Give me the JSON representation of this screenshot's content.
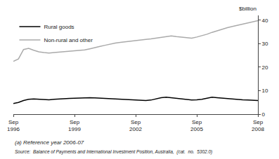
{
  "chart_data": {
    "type": "line",
    "ylabel": "$billion",
    "annotations": [
      "(a) Reference year 2006-07",
      "Source:  Balance of Payments and International Investment Position, Australia,  (cat.  no.  5302.0)"
    ],
    "categories": [
      "Sep\n1996",
      null,
      null,
      null,
      null,
      null,
      null,
      null,
      null,
      null,
      null,
      null,
      "Sep\n1999",
      null,
      null,
      null,
      null,
      null,
      null,
      null,
      null,
      null,
      null,
      null,
      "Sep\n2002",
      null,
      null,
      null,
      null,
      null,
      null,
      null,
      null,
      null,
      null,
      null,
      "Sep\n2005",
      null,
      null,
      null,
      null,
      null,
      null,
      null,
      null,
      null,
      null,
      null,
      "Sep\n2008"
    ],
    "series": [
      {
        "name": "Rural goods",
        "color": "#000000",
        "values": [
          4.5,
          5.0,
          5.8,
          6.3,
          6.5,
          6.3,
          6.2,
          6.1,
          6.3,
          6.5,
          6.6,
          6.7,
          6.8,
          6.9,
          7.0,
          7.0,
          6.9,
          6.8,
          6.7,
          6.6,
          6.5,
          6.5,
          6.4,
          6.3,
          6.2,
          6.0,
          5.8,
          6.0,
          6.5,
          7.0,
          7.2,
          7.0,
          6.7,
          6.4,
          6.2,
          6.0,
          6.1,
          6.3,
          6.8,
          7.2,
          7.0,
          6.8,
          6.5,
          6.3,
          6.2,
          6.1,
          6.0,
          5.9,
          5.8
        ]
      },
      {
        "name": "Non-rural and other",
        "color": "#aaaaaa",
        "values": [
          22.5,
          23.5,
          27.5,
          28.0,
          27.2,
          26.5,
          26.2,
          26.0,
          26.2,
          26.4,
          26.5,
          26.6,
          26.8,
          27.0,
          27.3,
          27.8,
          28.2,
          28.8,
          29.3,
          29.8,
          30.2,
          30.5,
          30.8,
          31.0,
          31.2,
          31.5,
          31.8,
          32.0,
          32.3,
          32.8,
          33.0,
          33.3,
          33.0,
          32.8,
          32.5,
          32.3,
          32.8,
          33.3,
          34.0,
          34.8,
          35.5,
          36.2,
          36.8,
          37.3,
          37.8,
          38.3,
          38.8,
          39.3,
          39.8
        ]
      }
    ],
    "ylim": [
      0,
      42
    ],
    "yticks": [
      0,
      10,
      20,
      30,
      40
    ],
    "grid": false,
    "legend": "upper left"
  }
}
